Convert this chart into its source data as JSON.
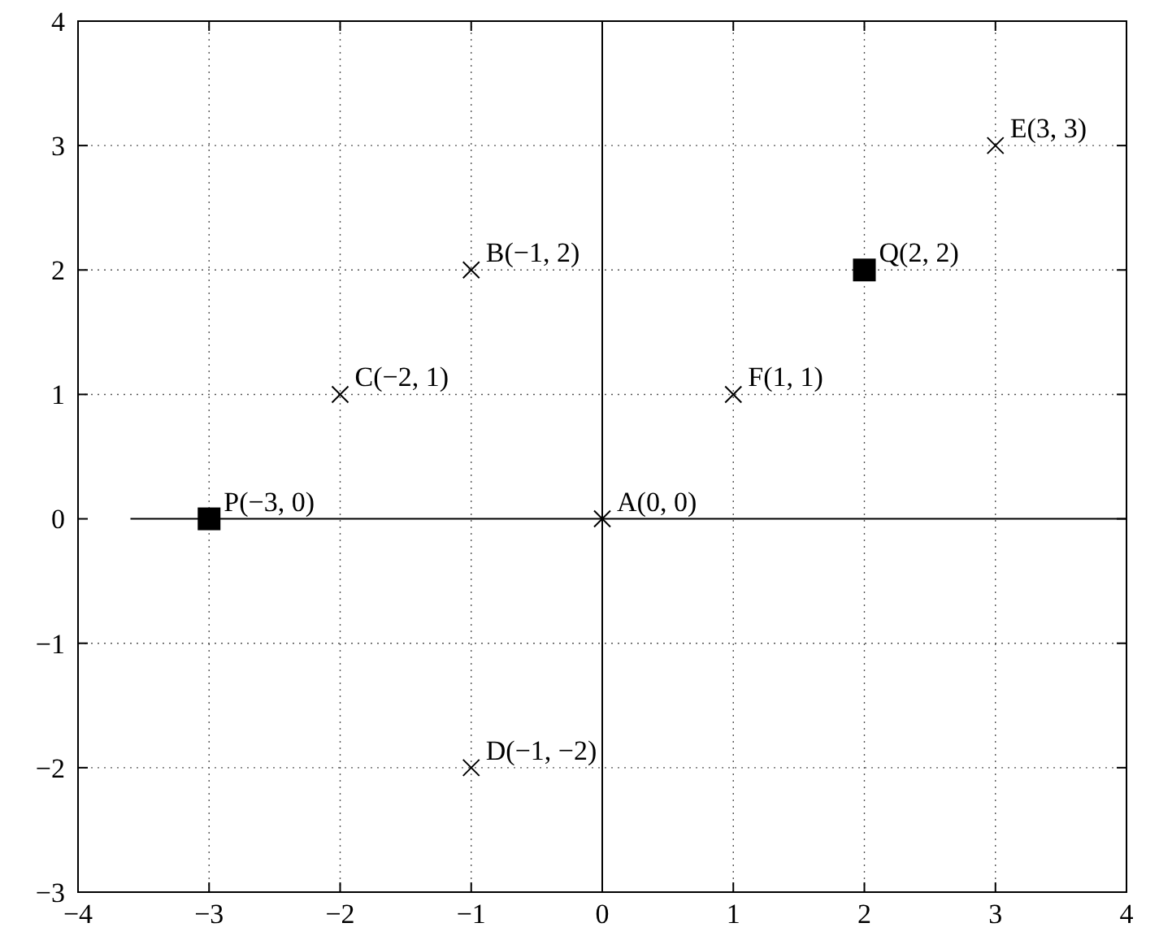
{
  "chart_data": {
    "type": "scatter",
    "series": [
      {
        "type": "line",
        "color": "#000000",
        "x": [
          -3.6,
          4
        ],
        "values": [
          0,
          0
        ]
      },
      {
        "type": "line",
        "color": "#000000",
        "x": [
          0,
          0
        ],
        "values": [
          -3,
          4
        ]
      },
      {
        "marker": "cross",
        "color": "#000000",
        "x": [
          0,
          -1,
          -2,
          -1,
          3,
          1
        ],
        "values": [
          0,
          2,
          1,
          -2,
          3,
          1
        ]
      },
      {
        "marker": "square",
        "color": "#000000",
        "x": [
          -3,
          2
        ],
        "values": [
          0,
          2
        ]
      }
    ],
    "annotations": [
      {
        "text": "A(0, 0)",
        "x": 0,
        "y": 0
      },
      {
        "text": "B(−1, 2)",
        "x": -1,
        "y": 2
      },
      {
        "text": "C(−2, 1)",
        "x": -2,
        "y": 1
      },
      {
        "text": "D(−1, −2)",
        "x": -1,
        "y": -2
      },
      {
        "text": "E(3, 3)",
        "x": 3,
        "y": 3
      },
      {
        "text": "F(1, 1)",
        "x": 1,
        "y": 1
      },
      {
        "text": "P(−3, 0)",
        "x": -3,
        "y": 0
      },
      {
        "text": "Q(2, 2)",
        "x": 2,
        "y": 2
      }
    ],
    "xlim": [
      -4,
      4
    ],
    "xticks": [
      {
        "value": -4,
        "label": "−4"
      },
      {
        "value": -3,
        "label": "−3"
      },
      {
        "value": -2,
        "label": "−2"
      },
      {
        "value": -1,
        "label": "−1"
      },
      0,
      1,
      2,
      3,
      4
    ],
    "ylim": [
      -3,
      4
    ],
    "yticks": [
      {
        "value": -3,
        "label": "−3"
      },
      {
        "value": -2,
        "label": "−2"
      },
      {
        "value": -1,
        "label": "−1"
      },
      0,
      1,
      2,
      3,
      4
    ],
    "grid": true
  }
}
